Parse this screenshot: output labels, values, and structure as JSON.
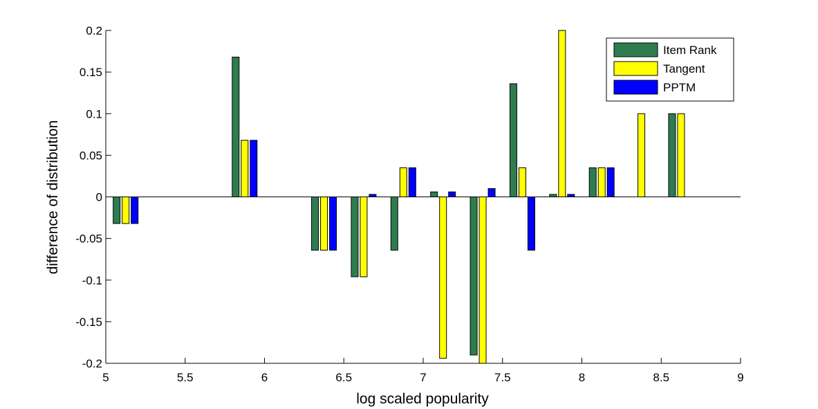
{
  "chart_data": {
    "type": "bar",
    "xlabel": "log scaled popularity",
    "ylabel": "difference of distribution",
    "xlim": [
      5,
      9
    ],
    "ylim": [
      -0.2,
      0.2
    ],
    "xticks": [
      "5",
      "5.5",
      "6",
      "6.5",
      "7",
      "7.5",
      "8",
      "8.5",
      "9"
    ],
    "yticks": [
      "-0.2",
      "-0.15",
      "-0.1",
      "-0.05",
      "0",
      "0.05",
      "0.1",
      "0.15",
      "0.2"
    ],
    "grid": false,
    "legend_position": "top-right",
    "x": [
      5.125,
      5.875,
      6.375,
      6.625,
      6.875,
      7.125,
      7.375,
      7.625,
      7.875,
      8.125,
      8.375,
      8.625
    ],
    "series": [
      {
        "name": "Item Rank",
        "color": "#2e7d4f",
        "values": [
          -0.032,
          0.168,
          -0.064,
          -0.096,
          -0.064,
          0.006,
          -0.19,
          0.136,
          0.003,
          0.035,
          0.0,
          0.1
        ]
      },
      {
        "name": "Tangent",
        "color": "#ffff00",
        "values": [
          -0.032,
          0.068,
          -0.064,
          -0.096,
          0.035,
          -0.194,
          -0.2,
          0.035,
          0.2,
          0.035,
          0.1,
          0.1
        ]
      },
      {
        "name": "PPTM",
        "color": "#0000ff",
        "values": [
          -0.032,
          0.068,
          -0.064,
          0.003,
          0.035,
          0.006,
          0.01,
          -0.064,
          0.003,
          0.035,
          0.0,
          0.0
        ]
      }
    ]
  }
}
